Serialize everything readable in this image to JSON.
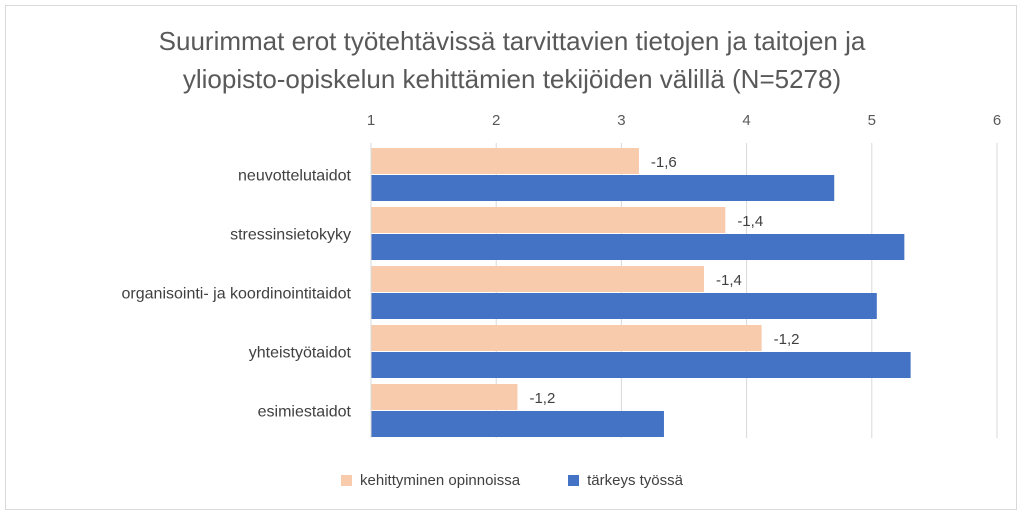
{
  "title_line1": "Suurimmat erot työtehtävissä tarvittavien tietojen ja taitojen ja",
  "title_line2": "yliopisto-opiskelun kehittämien tekijöiden välillä (N=5278)",
  "legend": [
    {
      "label": "kehittyminen opinnoissa",
      "color": "#F8CBAD"
    },
    {
      "label": "tärkeys työssä",
      "color": "#4472C4"
    }
  ],
  "chart_data": {
    "type": "bar",
    "orientation": "horizontal",
    "title": "Suurimmat erot työtehtävissä tarvittavien tietojen ja taitojen ja yliopisto-opiskelun kehittämien tekijöiden välillä (N=5278)",
    "categories": [
      "neuvottelutaidot",
      "stressinsietokyky",
      "organisointi- ja koordinointitaidot",
      "yhteistyötaidot",
      "esimiestaidot"
    ],
    "series": [
      {
        "name": "kehittyminen opinnoissa",
        "color": "#F8CBAD",
        "values": [
          3.14,
          3.83,
          3.66,
          4.12,
          2.17
        ]
      },
      {
        "name": "tärkeys työssä",
        "color": "#4472C4",
        "values": [
          4.7,
          5.26,
          5.04,
          5.31,
          3.34
        ]
      }
    ],
    "data_labels": [
      "-1,6",
      "-1,4",
      "-1,4",
      "-1,2",
      "-1,2"
    ],
    "xlim": [
      1,
      6
    ],
    "xticks": [
      "1",
      "2",
      "3",
      "4",
      "5",
      "6"
    ],
    "xaxis_position": "top",
    "grid": true,
    "legend_position": "bottom"
  }
}
